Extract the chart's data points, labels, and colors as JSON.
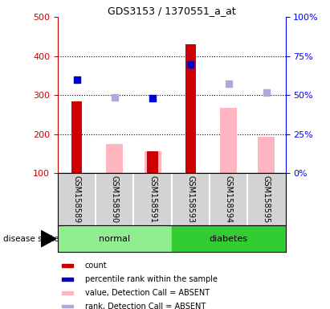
{
  "title": "GDS3153 / 1370551_a_at",
  "samples": [
    "GSM158589",
    "GSM158590",
    "GSM158591",
    "GSM158593",
    "GSM158594",
    "GSM158595"
  ],
  "groups": [
    "normal",
    "normal",
    "normal",
    "diabetes",
    "diabetes",
    "diabetes"
  ],
  "normal_color": "#90EE90",
  "diabetes_color": "#32CD32",
  "ylim_left": [
    100,
    500
  ],
  "ylim_right": [
    0,
    100
  ],
  "yticks_left": [
    100,
    200,
    300,
    400,
    500
  ],
  "yticks_right": [
    0,
    25,
    50,
    75,
    100
  ],
  "count_values": [
    283,
    null,
    155,
    430,
    null,
    null
  ],
  "count_color": "#CC0000",
  "percentile_values": [
    340,
    null,
    292,
    378,
    null,
    null
  ],
  "percentile_color": "#0000CC",
  "value_absent": [
    null,
    175,
    155,
    null,
    267,
    193
  ],
  "value_absent_color": "#FFB6C1",
  "rank_absent": [
    null,
    295,
    null,
    null,
    330,
    307
  ],
  "rank_absent_color": "#AAAADD",
  "bar_width": 0.28,
  "dot_size": 40,
  "legend_items": [
    {
      "label": "count",
      "color": "#CC0000"
    },
    {
      "label": "percentile rank within the sample",
      "color": "#0000CC"
    },
    {
      "label": "value, Detection Call = ABSENT",
      "color": "#FFB6C1"
    },
    {
      "label": "rank, Detection Call = ABSENT",
      "color": "#AAAADD"
    }
  ]
}
